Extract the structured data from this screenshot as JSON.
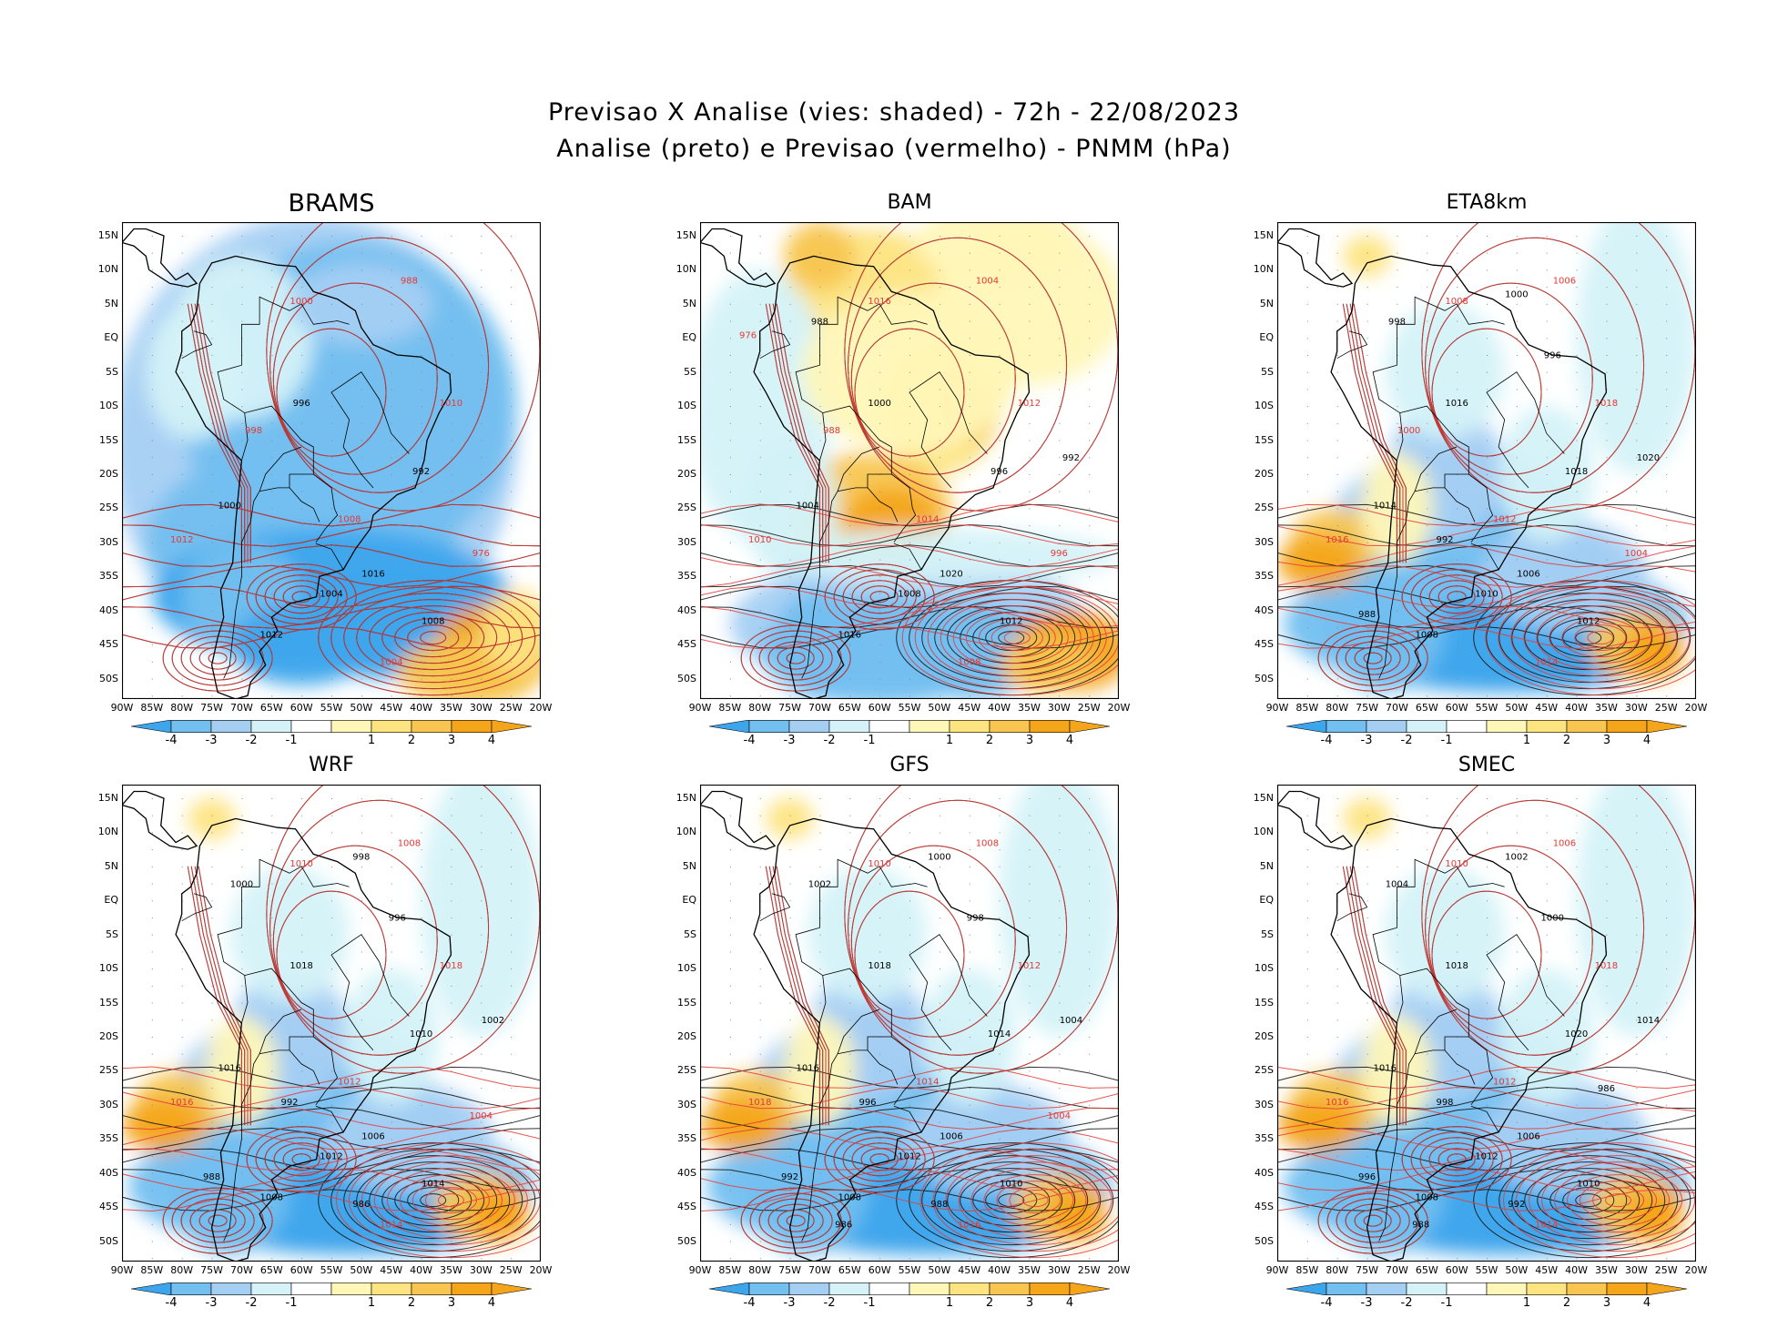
{
  "figure": {
    "title_line1": "Previsao X Analise (vies: shaded) - 72h - 22/08/2023",
    "title_line2": "Analise (preto) e Previsao (vermelho) - PNMM (hPa)"
  },
  "axes": {
    "lat_labels": [
      "15N",
      "10N",
      "5N",
      "EQ",
      "5S",
      "10S",
      "15S",
      "20S",
      "25S",
      "30S",
      "35S",
      "40S",
      "45S",
      "50S"
    ],
    "lon_labels": [
      "90W",
      "85W",
      "80W",
      "75W",
      "70W",
      "65W",
      "60W",
      "55W",
      "50W",
      "45W",
      "40W",
      "35W",
      "30W",
      "25W",
      "20W"
    ]
  },
  "colorbar": {
    "tick_labels": [
      "-4",
      "-3",
      "-2",
      "-1",
      "1",
      "2",
      "3",
      "4"
    ],
    "colors": [
      "#3da5ec",
      "#73bff0",
      "#a4cff3",
      "#d4f2f8",
      "#ffffff",
      "#fff7b8",
      "#fde480",
      "#f8c650",
      "#f4a51a"
    ]
  },
  "panels": [
    {
      "name": "BRAMS",
      "dominant_bias": "negative",
      "contour_labels_analysis": [
        "1004",
        "1008",
        "1012",
        "1016",
        "1000",
        "996",
        "992"
      ],
      "contour_labels_forecast": [
        "1008",
        "1004",
        "1012",
        "1010",
        "1000",
        "988",
        "976",
        "998"
      ]
    },
    {
      "name": "BAM",
      "dominant_bias": "mixed",
      "contour_labels_analysis": [
        "1008",
        "1012",
        "1016",
        "1020",
        "1004",
        "1000",
        "996",
        "992",
        "988"
      ],
      "contour_labels_forecast": [
        "1014",
        "1008",
        "1010",
        "1012",
        "1016",
        "1004",
        "996",
        "988",
        "976"
      ]
    },
    {
      "name": "ETA8km",
      "dominant_bias": "negative-south",
      "contour_labels_analysis": [
        "1010",
        "1012",
        "1008",
        "1006",
        "1014",
        "1016",
        "1018",
        "1020",
        "998",
        "1000",
        "996",
        "992",
        "988"
      ],
      "contour_labels_forecast": [
        "1012",
        "1014",
        "1016",
        "1018",
        "1008",
        "1006",
        "1004",
        "1000"
      ]
    },
    {
      "name": "WRF",
      "dominant_bias": "negative-south",
      "contour_labels_analysis": [
        "1012",
        "1014",
        "1008",
        "1006",
        "1016",
        "1018",
        "1010",
        "1002",
        "1000",
        "998",
        "996",
        "992",
        "988",
        "986"
      ],
      "contour_labels_forecast": [
        "1012",
        "1014",
        "1016",
        "1018",
        "1010",
        "1008",
        "1004"
      ]
    },
    {
      "name": "GFS",
      "dominant_bias": "negative-south",
      "contour_labels_analysis": [
        "1012",
        "1010",
        "1008",
        "1006",
        "1016",
        "1018",
        "1014",
        "1004",
        "1002",
        "1000",
        "998",
        "996",
        "992",
        "988",
        "986"
      ],
      "contour_labels_forecast": [
        "1014",
        "1016",
        "1018",
        "1012",
        "1010",
        "1008",
        "1004"
      ]
    },
    {
      "name": "SMEC",
      "dominant_bias": "negative-south",
      "contour_labels_analysis": [
        "1012",
        "1010",
        "1008",
        "1006",
        "1016",
        "1018",
        "1020",
        "1014",
        "1004",
        "1002",
        "1000",
        "998",
        "996",
        "992",
        "988",
        "986"
      ],
      "contour_labels_forecast": [
        "1012",
        "1014",
        "1016",
        "1018",
        "1010",
        "1006"
      ]
    }
  ]
}
